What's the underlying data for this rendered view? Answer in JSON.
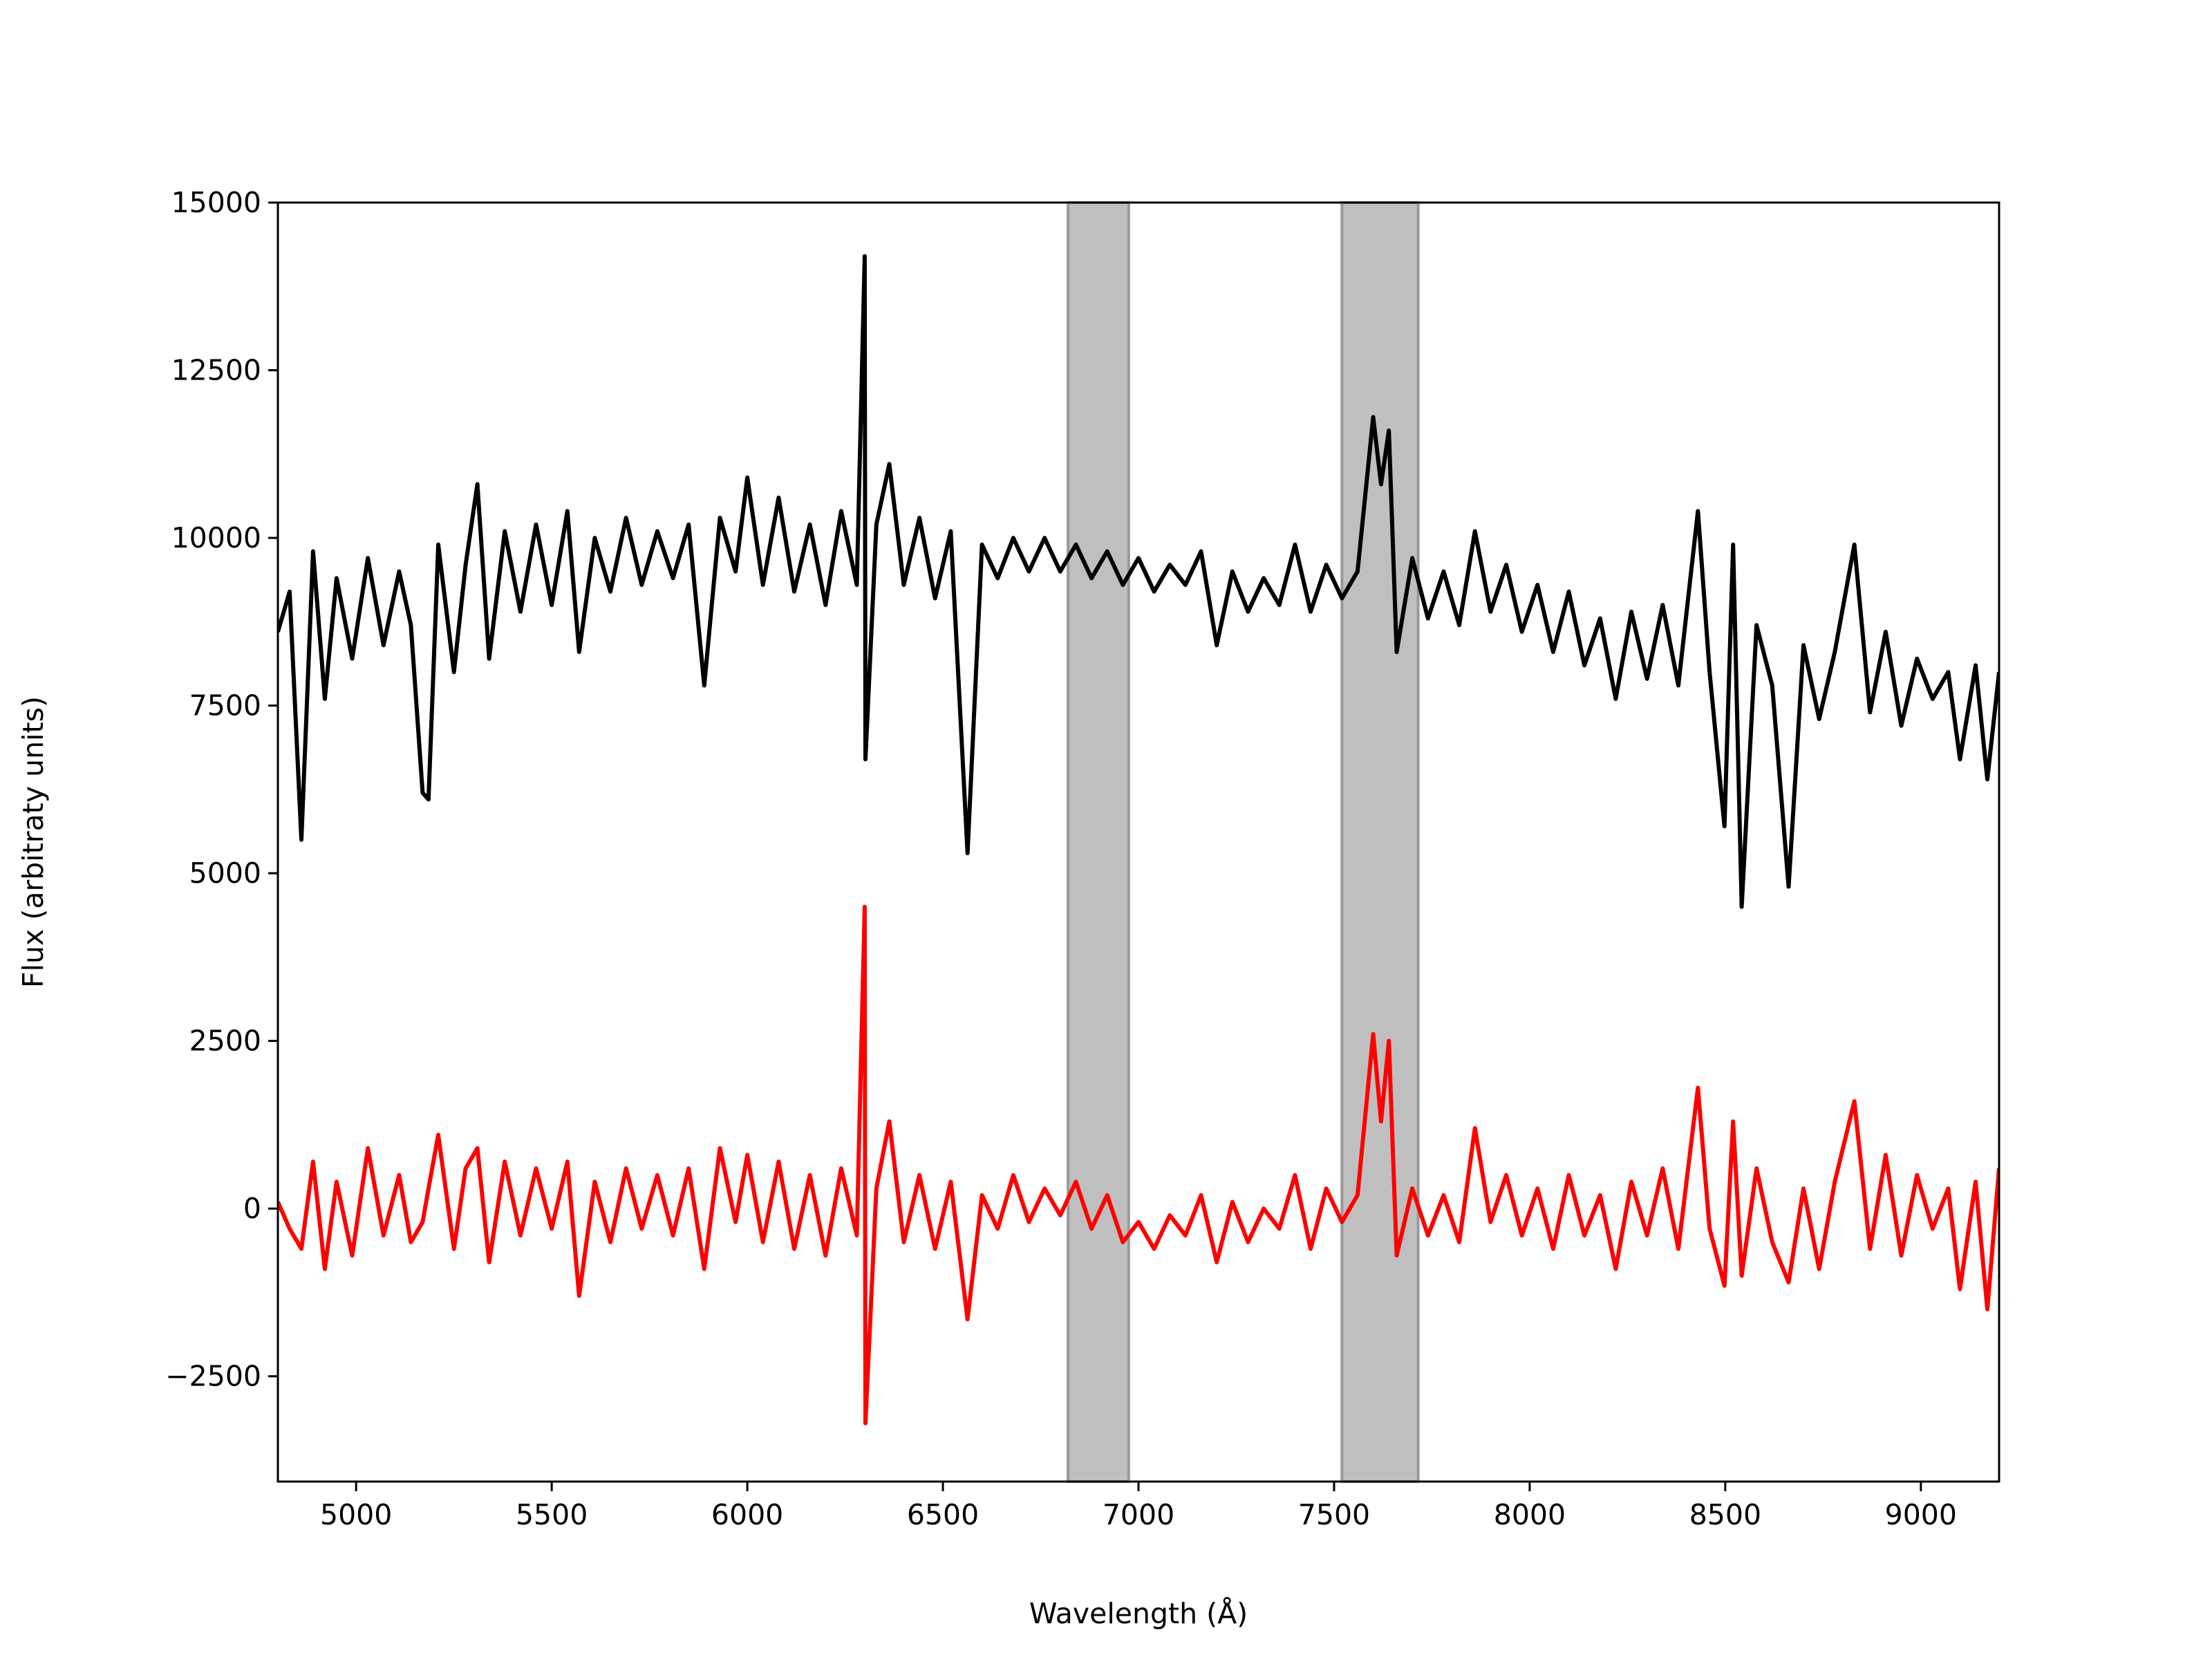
{
  "chart_data": {
    "type": "line",
    "x_label": "Wavelength (Å)",
    "y_label": "Flux (arbitraty units)",
    "xlim": [
      4800,
      9200
    ],
    "ylim": [
      -4070,
      15000
    ],
    "xticks": [
      5000,
      5500,
      6000,
      6500,
      7000,
      7500,
      8000,
      8500,
      9000
    ],
    "yticks": [
      {
        "value": -2500,
        "label": "−2500"
      },
      0,
      2500,
      5000,
      7500,
      10000,
      12500,
      15000
    ],
    "shaded_regions": [
      {
        "xmin": 6820,
        "xmax": 6975
      },
      {
        "xmin": 7520,
        "xmax": 7715
      }
    ],
    "shade_color": "#bfbfbf",
    "x": [
      4800,
      4830,
      4860,
      4890,
      4920,
      4950,
      4990,
      5030,
      5070,
      5110,
      5140,
      5170,
      5185,
      5210,
      5250,
      5280,
      5310,
      5340,
      5380,
      5420,
      5460,
      5500,
      5540,
      5570,
      5610,
      5650,
      5690,
      5730,
      5770,
      5810,
      5850,
      5890,
      5930,
      5970,
      6000,
      6040,
      6080,
      6120,
      6160,
      6200,
      6240,
      6280,
      6300,
      6302,
      6330,
      6363,
      6400,
      6440,
      6480,
      6520,
      6563,
      6600,
      6640,
      6680,
      6720,
      6760,
      6800,
      6840,
      6880,
      6920,
      6960,
      7000,
      7040,
      7080,
      7120,
      7160,
      7200,
      7240,
      7280,
      7320,
      7360,
      7400,
      7440,
      7480,
      7520,
      7560,
      7600,
      7620,
      7640,
      7660,
      7700,
      7740,
      7780,
      7820,
      7860,
      7900,
      7940,
      7980,
      8020,
      8060,
      8100,
      8140,
      8180,
      8220,
      8260,
      8300,
      8340,
      8380,
      8430,
      8460,
      8498,
      8520,
      8542,
      8580,
      8620,
      8662,
      8700,
      8740,
      8780,
      8830,
      8870,
      8910,
      8950,
      8990,
      9030,
      9070,
      9100,
      9140,
      9170,
      9200
    ],
    "series": [
      {
        "color": "#000000",
        "values": [
          8600,
          9200,
          5500,
          9800,
          7600,
          9400,
          8200,
          9700,
          8400,
          9500,
          8700,
          6200,
          6100,
          9900,
          8000,
          9600,
          10800,
          8200,
          10100,
          8900,
          10200,
          9000,
          10400,
          8300,
          10000,
          9200,
          10300,
          9300,
          10100,
          9400,
          10200,
          7800,
          10300,
          9500,
          10900,
          9300,
          10600,
          9200,
          10200,
          9000,
          10400,
          9300,
          14200,
          6700,
          10200,
          11100,
          9300,
          10300,
          9100,
          10100,
          5300,
          9900,
          9400,
          10000,
          9500,
          10000,
          9500,
          9900,
          9400,
          9800,
          9300,
          9700,
          9200,
          9600,
          9300,
          9800,
          8400,
          9500,
          8900,
          9400,
          9000,
          9900,
          8900,
          9600,
          9100,
          9500,
          11800,
          10800,
          11600,
          8300,
          9700,
          8800,
          9500,
          8700,
          10100,
          8900,
          9600,
          8600,
          9300,
          8300,
          9200,
          8100,
          8800,
          7600,
          8900,
          7900,
          9000,
          7800,
          10400,
          8000,
          5700,
          9900,
          4500,
          8700,
          7800,
          4800,
          8400,
          7300,
          8300,
          9900,
          7400,
          8600,
          7200,
          8200,
          7600,
          8000,
          6700,
          8100,
          6400,
          8000
        ]
      },
      {
        "color": "#ff0000",
        "values": [
          100,
          -300,
          -600,
          700,
          -900,
          400,
          -700,
          900,
          -400,
          500,
          -500,
          -200,
          300,
          1100,
          -600,
          600,
          900,
          -800,
          700,
          -400,
          600,
          -300,
          700,
          -1300,
          400,
          -500,
          600,
          -300,
          500,
          -400,
          600,
          -900,
          900,
          -200,
          800,
          -500,
          700,
          -600,
          500,
          -700,
          600,
          -400,
          4500,
          -3200,
          300,
          1300,
          -500,
          500,
          -600,
          400,
          -1650,
          200,
          -300,
          500,
          -200,
          300,
          -100,
          400,
          -300,
          200,
          -500,
          -200,
          -600,
          -100,
          -400,
          200,
          -800,
          100,
          -500,
          0,
          -300,
          500,
          -600,
          300,
          -200,
          200,
          2600,
          1300,
          2500,
          -700,
          300,
          -400,
          200,
          -500,
          1200,
          -200,
          500,
          -400,
          300,
          -600,
          500,
          -400,
          200,
          -900,
          400,
          -400,
          600,
          -600,
          1800,
          -300,
          -1150,
          1300,
          -1000,
          600,
          -500,
          -1100,
          300,
          -900,
          400,
          1600,
          -600,
          800,
          -700,
          500,
          -300,
          300,
          -1200,
          400,
          -1500,
          600
        ]
      }
    ]
  }
}
